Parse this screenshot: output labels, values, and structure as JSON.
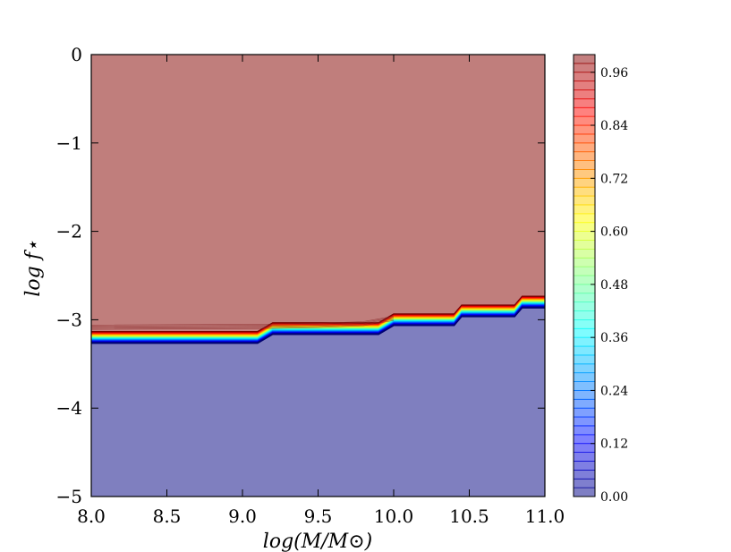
{
  "chart_data": {
    "type": "contour",
    "title": "",
    "xlabel": "log(M/M⊙)",
    "ylabel": "log f⋆",
    "xlim": [
      8.0,
      11.0
    ],
    "ylim": [
      -5,
      0
    ],
    "x_ticks": [
      8.0,
      8.5,
      9.0,
      9.5,
      10.0,
      10.5,
      11.0
    ],
    "x_tick_labels": [
      "8.0",
      "8.5",
      "9.0",
      "9.5",
      "10.0",
      "10.5",
      "11.0"
    ],
    "y_ticks": [
      0,
      -1,
      -2,
      -3,
      -4,
      -5
    ],
    "y_tick_labels": [
      "0",
      "−1",
      "−2",
      "−3",
      "−4",
      "−5"
    ],
    "grid": false,
    "colormap": "jet",
    "colorbar": {
      "range": [
        0.0,
        1.0
      ],
      "ticks": [
        0.0,
        0.12,
        0.24,
        0.36,
        0.48,
        0.6,
        0.72,
        0.84,
        0.96
      ],
      "tick_labels": [
        "0.00",
        "0.12",
        "0.24",
        "0.36",
        "0.48",
        "0.60",
        "0.72",
        "0.84",
        "0.96"
      ]
    },
    "regions": [
      {
        "value": 1.0,
        "color": "#c07e7c",
        "location": "above transition"
      },
      {
        "value": 0.0,
        "color": "#7f7fbf",
        "location": "below transition"
      }
    ],
    "transition_boundary": {
      "x": [
        8.0,
        9.1,
        9.2,
        9.9,
        10.0,
        10.4,
        10.45,
        10.8,
        10.85,
        11.0
      ],
      "y": [
        -3.2,
        -3.2,
        -3.1,
        -3.1,
        -3.0,
        -3.0,
        -2.9,
        -2.9,
        -2.8,
        -2.8
      ]
    },
    "transition_width_dex": 0.12,
    "upper_fringe": {
      "x": [
        8.0,
        9.2,
        9.5,
        9.8,
        10.0
      ],
      "y": [
        -3.06,
        -3.05,
        -3.04,
        -3.02,
        -2.96
      ]
    }
  }
}
